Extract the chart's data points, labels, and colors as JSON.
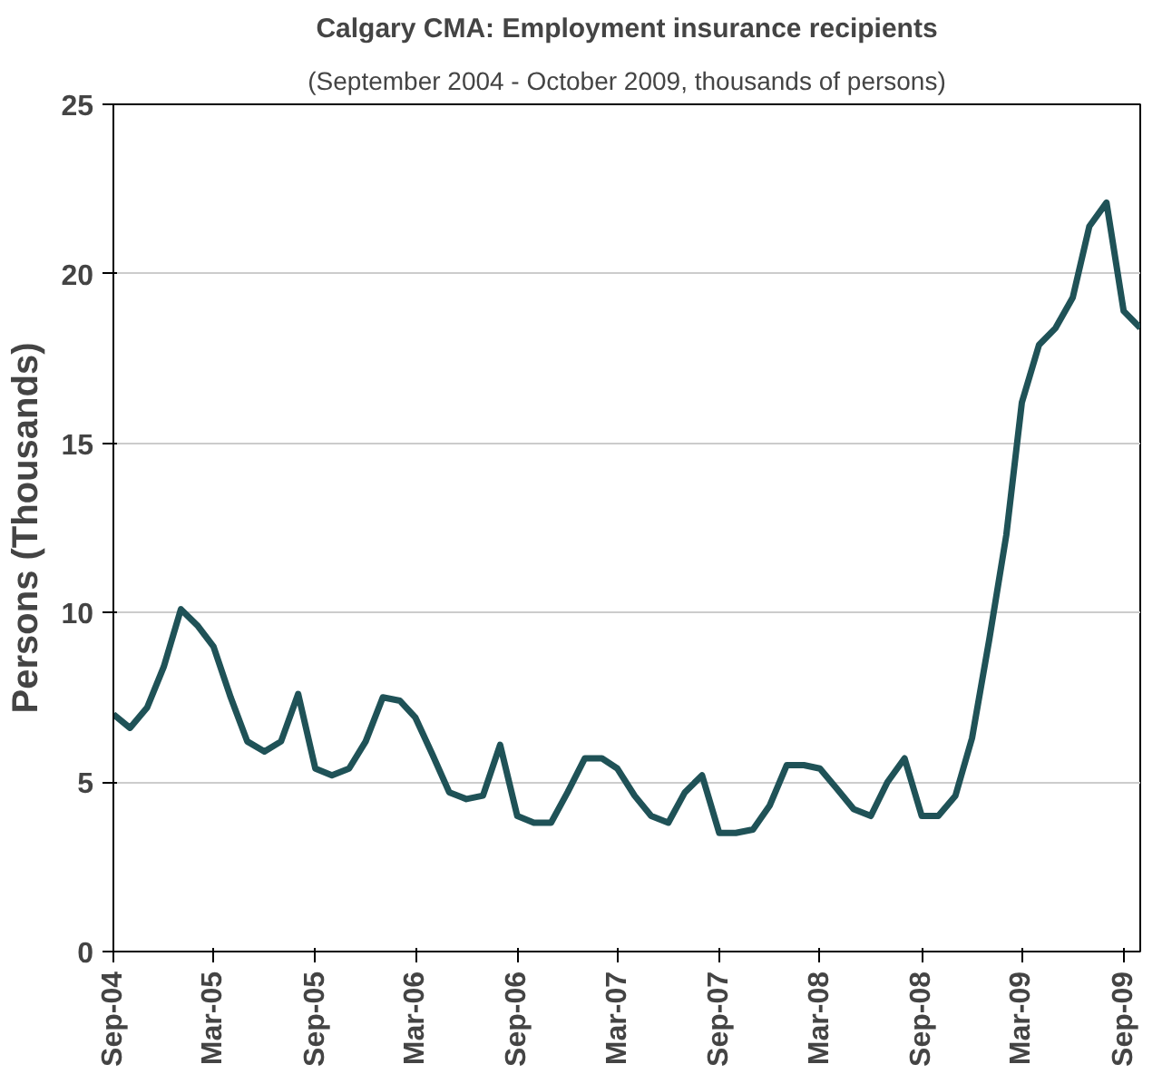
{
  "chart_data": {
    "type": "line",
    "title": "Calgary CMA: Employment insurance recipients",
    "subtitle": "(September 2004 - October 2009, thousands of persons)",
    "ylabel": "Persons (Thousands)",
    "x": [
      "2004-09",
      "2004-10",
      "2004-11",
      "2004-12",
      "2005-01",
      "2005-02",
      "2005-03",
      "2005-04",
      "2005-05",
      "2005-06",
      "2005-07",
      "2005-08",
      "2005-09",
      "2005-10",
      "2005-11",
      "2005-12",
      "2006-01",
      "2006-02",
      "2006-03",
      "2006-04",
      "2006-05",
      "2006-06",
      "2006-07",
      "2006-08",
      "2006-09",
      "2006-10",
      "2006-11",
      "2006-12",
      "2007-01",
      "2007-02",
      "2007-03",
      "2007-04",
      "2007-05",
      "2007-06",
      "2007-07",
      "2007-08",
      "2007-09",
      "2007-10",
      "2007-11",
      "2007-12",
      "2008-01",
      "2008-02",
      "2008-03",
      "2008-04",
      "2008-05",
      "2008-06",
      "2008-07",
      "2008-08",
      "2008-09",
      "2008-10",
      "2008-11",
      "2008-12",
      "2009-01",
      "2009-02",
      "2009-03",
      "2009-04",
      "2009-05",
      "2009-06",
      "2009-07",
      "2009-08",
      "2009-09",
      "2009-10"
    ],
    "series": [
      {
        "color": "#1f5257",
        "values": [
          7.0,
          6.6,
          7.2,
          8.4,
          10.1,
          9.6,
          9.0,
          7.5,
          6.2,
          5.9,
          6.2,
          7.6,
          5.4,
          5.2,
          5.4,
          6.2,
          7.5,
          7.4,
          6.9,
          5.8,
          4.7,
          4.5,
          4.6,
          6.1,
          4.0,
          3.8,
          3.8,
          4.7,
          5.7,
          5.7,
          5.4,
          4.6,
          4.0,
          3.8,
          4.7,
          5.2,
          3.5,
          3.5,
          3.6,
          4.3,
          5.5,
          5.5,
          5.4,
          4.8,
          4.2,
          4.0,
          5.0,
          5.7,
          4.0,
          4.0,
          4.6,
          6.3,
          9.2,
          12.3,
          16.2,
          17.9,
          18.4,
          19.3,
          21.4,
          22.1,
          18.9,
          18.4
        ]
      }
    ],
    "xlim": [
      "2004-09",
      "2009-10"
    ],
    "xticks": [
      {
        "value": "2004-09",
        "label": "Sep-04"
      },
      {
        "value": "2005-03",
        "label": "Mar-05"
      },
      {
        "value": "2005-09",
        "label": "Sep-05"
      },
      {
        "value": "2006-03",
        "label": "Mar-06"
      },
      {
        "value": "2006-09",
        "label": "Sep-06"
      },
      {
        "value": "2007-03",
        "label": "Mar-07"
      },
      {
        "value": "2007-09",
        "label": "Sep-07"
      },
      {
        "value": "2008-03",
        "label": "Mar-08"
      },
      {
        "value": "2008-09",
        "label": "Sep-08"
      },
      {
        "value": "2009-03",
        "label": "Mar-09"
      },
      {
        "value": "2009-09",
        "label": "Sep-09"
      }
    ],
    "ylim": [
      0,
      25
    ],
    "yticks": [
      0,
      5,
      10,
      15,
      20,
      25
    ],
    "grid": "y",
    "marker": "none",
    "line_style": "solid"
  }
}
